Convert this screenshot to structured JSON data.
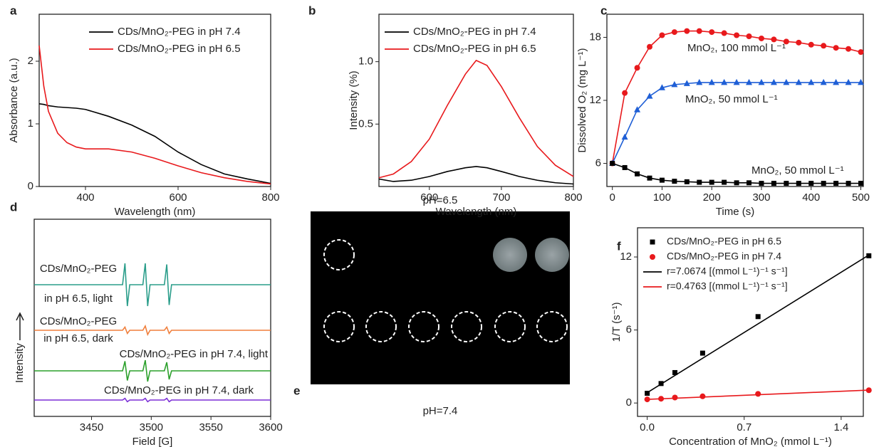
{
  "chart_data": [
    {
      "type": "line",
      "panel": "a",
      "xlabel": "Wavelength (nm)",
      "ylabel": "Absorbance (a.u.)",
      "xlim": [
        300,
        800
      ],
      "ylim": [
        0,
        2.75
      ],
      "xticks": [
        400,
        600,
        800
      ],
      "yticks": [
        0,
        1,
        2
      ],
      "x": [
        300,
        310,
        320,
        340,
        360,
        380,
        400,
        450,
        500,
        550,
        600,
        650,
        700,
        750,
        800
      ],
      "series": [
        {
          "name": "CDs/MnO₂-PEG in pH 7.4",
          "color": "#000000",
          "values": [
            1.32,
            1.31,
            1.29,
            1.27,
            1.26,
            1.25,
            1.23,
            1.12,
            0.98,
            0.8,
            0.55,
            0.35,
            0.2,
            0.12,
            0.05
          ]
        },
        {
          "name": "CDs/MnO₂-PEG in pH 6.5",
          "color": "#e8191c",
          "values": [
            2.25,
            1.6,
            1.2,
            0.85,
            0.7,
            0.63,
            0.6,
            0.6,
            0.55,
            0.45,
            0.33,
            0.22,
            0.14,
            0.08,
            0.04
          ]
        }
      ]
    },
    {
      "type": "line",
      "panel": "b",
      "xlabel": "Wavelength (nm)",
      "ylabel": "Intensity (%)",
      "xlim": [
        530,
        800
      ],
      "ylim": [
        0,
        1.38
      ],
      "xticks": [
        600,
        700,
        800
      ],
      "yticks": [
        0.5,
        {
          "value": 1,
          "label": "1.0"
        }
      ],
      "x": [
        530,
        550,
        575,
        600,
        625,
        650,
        665,
        680,
        700,
        725,
        750,
        775,
        800
      ],
      "series": [
        {
          "name": "CDs/MnO₂-PEG in pH 7.4",
          "color": "#000000",
          "values": [
            0.06,
            0.04,
            0.05,
            0.08,
            0.12,
            0.15,
            0.16,
            0.15,
            0.12,
            0.08,
            0.05,
            0.03,
            0.02
          ]
        },
        {
          "name": "CDs/MnO₂-PEG in pH 6.5",
          "color": "#e8191c",
          "values": [
            0.07,
            0.1,
            0.2,
            0.38,
            0.65,
            0.9,
            1.01,
            0.97,
            0.8,
            0.55,
            0.32,
            0.17,
            0.08
          ]
        }
      ]
    },
    {
      "type": "line",
      "panel": "c",
      "xlabel": "Time (s)",
      "ylabel": "Dissolved O₂ (mg L⁻¹)",
      "xlim": [
        -11,
        505
      ],
      "ylim": [
        3.8,
        20.2
      ],
      "xticks": [
        0,
        100,
        200,
        300,
        400,
        500
      ],
      "yticks": [
        6,
        12,
        18
      ],
      "x": [
        0,
        25,
        50,
        75,
        100,
        125,
        150,
        175,
        200,
        225,
        250,
        275,
        300,
        325,
        350,
        375,
        400,
        425,
        450,
        475,
        500
      ],
      "series": [
        {
          "name": "MnO₂, 100 mmol L⁻¹",
          "color": "#e8191c",
          "marker": "circle",
          "values": [
            6,
            12.7,
            15.1,
            17.1,
            18.2,
            18.5,
            18.6,
            18.6,
            18.5,
            18.4,
            18.2,
            18.1,
            17.9,
            17.8,
            17.6,
            17.5,
            17.3,
            17.2,
            17.0,
            16.9,
            16.6
          ]
        },
        {
          "name": "MnO₂, 50 mmol L⁻¹",
          "color": "#1f5fd6",
          "marker": "triangle",
          "values": [
            6,
            8.5,
            11.1,
            12.4,
            13.2,
            13.5,
            13.6,
            13.7,
            13.7,
            13.7,
            13.7,
            13.7,
            13.7,
            13.7,
            13.7,
            13.7,
            13.7,
            13.7,
            13.7,
            13.7,
            13.7
          ]
        },
        {
          "name": "MnO₂, 50 mmol L⁻¹",
          "color": "#000000",
          "marker": "square",
          "values": [
            6,
            5.6,
            5.0,
            4.6,
            4.4,
            4.3,
            4.25,
            4.2,
            4.2,
            4.2,
            4.15,
            4.15,
            4.1,
            4.1,
            4.1,
            4.1,
            4.1,
            4.1,
            4.1,
            4.1,
            4.1
          ]
        }
      ]
    },
    {
      "type": "line",
      "panel": "d",
      "xlabel": "Field [G]",
      "ylabel": "Intensity",
      "xlim": [
        3402,
        3600
      ],
      "xticks": [
        3450,
        3500,
        3550,
        3600
      ],
      "x": [
        3402,
        3476,
        3478,
        3480,
        3482,
        3493,
        3495,
        3497,
        3499,
        3511,
        3513,
        3515,
        3517,
        3600
      ],
      "series": [
        {
          "name": [
            "CDs/MnO₂-PEG",
            "in pH 6.5, light"
          ],
          "color": "#2a9d8a",
          "values": [
            0,
            0,
            1,
            -1,
            0,
            0,
            1,
            -1,
            0,
            0,
            0.95,
            -0.95,
            0,
            0
          ]
        },
        {
          "name": [
            "CDs/MnO₂-PEG",
            "in pH 6.5, dark"
          ],
          "color": "#f07f3c",
          "values": [
            0,
            0,
            0.15,
            -0.15,
            0,
            0,
            0.2,
            -0.2,
            0,
            0,
            0.15,
            -0.15,
            0,
            0
          ]
        },
        {
          "name": "CDs/MnO₂-PEG in pH 7.4, light",
          "color": "#2ca02c",
          "values": [
            0,
            0,
            0.45,
            -0.45,
            0,
            0,
            0.5,
            -0.5,
            0,
            0,
            0.4,
            -0.4,
            0,
            0
          ]
        },
        {
          "name": "CDs/MnO₂-PEG in pH 7.4, dark",
          "color": "#7b2fd6",
          "values": [
            0,
            0,
            0.08,
            -0.08,
            0,
            0,
            0.08,
            -0.08,
            0,
            0,
            0.08,
            -0.08,
            0,
            0
          ]
        }
      ]
    },
    {
      "type": "image",
      "panel": "e",
      "labels": [
        "pH=6.5",
        "pH=7.4"
      ]
    },
    {
      "type": "scatter",
      "panel": "f",
      "xlabel": "Concentration of MnO₂ (mmol L⁻¹)",
      "ylabel": "1/T (s⁻¹)",
      "xlim": [
        -0.07,
        1.56
      ],
      "ylim": [
        -1.1,
        14.4
      ],
      "xticks": [
        {
          "value": 0,
          "label": "0.0"
        },
        0.7,
        1.4
      ],
      "yticks": [
        0,
        6,
        12
      ],
      "series": [
        {
          "name": "CDs/MnO₂-PEG in pH 6.5",
          "color": "#000000",
          "marker": "square",
          "x": [
            0,
            0.1,
            0.2,
            0.4,
            0.8,
            1.6
          ],
          "values": [
            0.8,
            1.6,
            2.5,
            4.1,
            7.1,
            12.1
          ]
        },
        {
          "name": "CDs/MnO₂-PEG in pH 7.4",
          "color": "#e8191c",
          "marker": "circle",
          "x": [
            0,
            0.1,
            0.2,
            0.4,
            0.8,
            1.6
          ],
          "values": [
            0.3,
            0.35,
            0.45,
            0.55,
            0.75,
            1.05
          ]
        },
        {
          "name": "r=7.0674 [(mmol L⁻¹)⁻¹ s⁻¹]",
          "color": "#000000",
          "x": [
            0,
            1.6
          ],
          "values": [
            0.85,
            12.16
          ]
        },
        {
          "name": "r=0.4763 [(mmol L⁻¹)⁻¹ s⁻¹]",
          "color": "#e8191c",
          "x": [
            0,
            1.6
          ],
          "values": [
            0.3,
            1.06
          ]
        }
      ]
    }
  ]
}
